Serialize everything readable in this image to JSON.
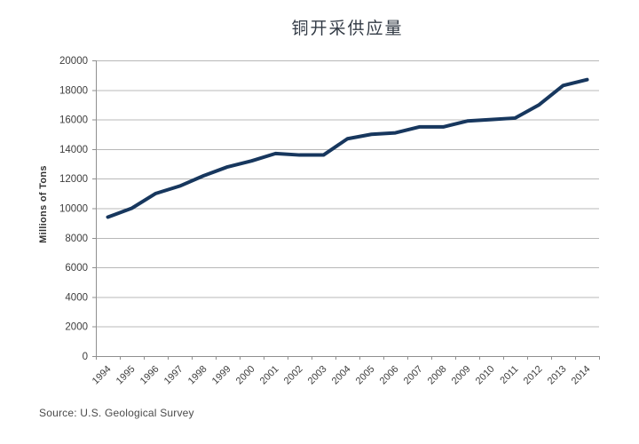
{
  "chart_data": {
    "type": "line",
    "title": "铜开采供应量",
    "xlabel": "",
    "ylabel": "Millions of Tons",
    "source": "Source: U.S. Geological Survey",
    "categories": [
      "1994",
      "1995",
      "1996",
      "1997",
      "1998",
      "1999",
      "2000",
      "2001",
      "2002",
      "2003",
      "2004",
      "2005",
      "2006",
      "2007",
      "2008",
      "2009",
      "2010",
      "2011",
      "2012",
      "2013",
      "2014"
    ],
    "series": [
      {
        "name": "铜开采供应量",
        "values": [
          9400,
          10000,
          11000,
          11500,
          12200,
          12800,
          13200,
          13700,
          13600,
          13600,
          14700,
          15000,
          15100,
          15500,
          15500,
          15900,
          16000,
          16100,
          17000,
          18300,
          18700
        ]
      }
    ],
    "ylim": [
      0,
      20000
    ],
    "ytick_step": 2000,
    "grid": true,
    "legend": false
  },
  "colors": {
    "line": "#17375e",
    "grid": "#b8b8b8",
    "axis": "#8f8f8f",
    "tick_text": "#3d3d3d"
  }
}
